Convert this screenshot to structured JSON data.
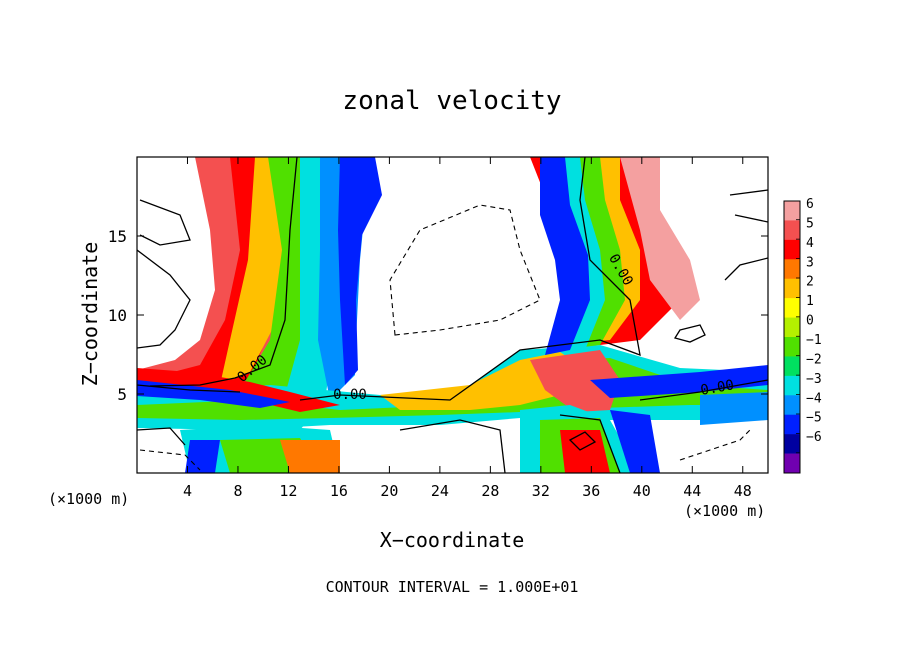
{
  "chart_data": {
    "type": "heatmap",
    "title": "zonal velocity",
    "xlabel": "X−coordinate",
    "ylabel": "Z−coordinate",
    "x_unit_left": "(×1000 m)",
    "x_unit_right": "(×1000 m)",
    "xlim": [
      0,
      50
    ],
    "ylim": [
      0,
      20
    ],
    "xticks": [
      "4",
      "8",
      "12",
      "16",
      "20",
      "24",
      "28",
      "32",
      "36",
      "40",
      "44",
      "48"
    ],
    "xtick_values": [
      4,
      8,
      12,
      16,
      20,
      24,
      28,
      32,
      36,
      40,
      44,
      48
    ],
    "yticks": [
      "5",
      "10",
      "15"
    ],
    "ytick_values": [
      5,
      10,
      15
    ],
    "footer": "CONTOUR INTERVAL = 1.000E+01",
    "contour_labels": [
      "0.00",
      "0.00",
      "0.00",
      "0.00"
    ],
    "colorbar": {
      "labels": [
        "6",
        "5",
        "4",
        "3",
        "2",
        "1",
        "0",
        "−1",
        "−2",
        "−3",
        "−4",
        "−5",
        "−6"
      ],
      "values": [
        6,
        5,
        4,
        3,
        2,
        1,
        0,
        -1,
        -2,
        -3,
        -4,
        -5,
        -6
      ],
      "colors": [
        "#f4a0a0",
        "#f45050",
        "#ff0000",
        "#ff7800",
        "#ffc000",
        "#ffff00",
        "#b4f000",
        "#50e000",
        "#00e060",
        "#00e0e0",
        "#0090ff",
        "#0020ff",
        "#0000a0",
        "#7000b0"
      ]
    }
  }
}
